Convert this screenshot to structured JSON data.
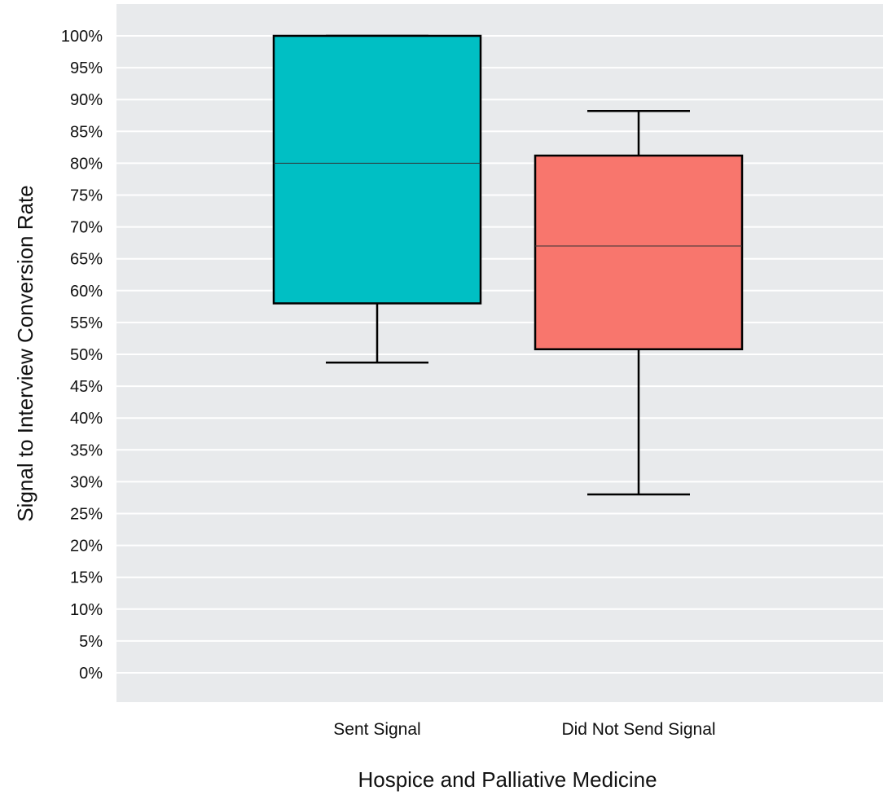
{
  "chart_data": {
    "type": "box",
    "xlabel": "Hospice and Palliative Medicine",
    "ylabel": "Signal to Interview Conversion Rate",
    "ylim": [
      0,
      1
    ],
    "y_tick_step": 0.05,
    "y_tick_format": "percent",
    "grid": true,
    "legend": "none",
    "categories": [
      "Sent Signal",
      "Did Not Send Signal"
    ],
    "boxes": [
      {
        "category": "Sent Signal",
        "whisker_low": 0.487,
        "q1": 0.58,
        "median": 0.8,
        "q3": 1.0,
        "whisker_high": 1.0,
        "color": "#00BFC4"
      },
      {
        "category": "Did Not Send Signal",
        "whisker_low": 0.28,
        "q1": 0.508,
        "median": 0.67,
        "q3": 0.812,
        "whisker_high": 0.882,
        "color": "#F8766D"
      }
    ],
    "colors": {
      "panel_background": "#E8EAEC",
      "grid": "#FFFFFF",
      "outline": "#000000"
    }
  }
}
